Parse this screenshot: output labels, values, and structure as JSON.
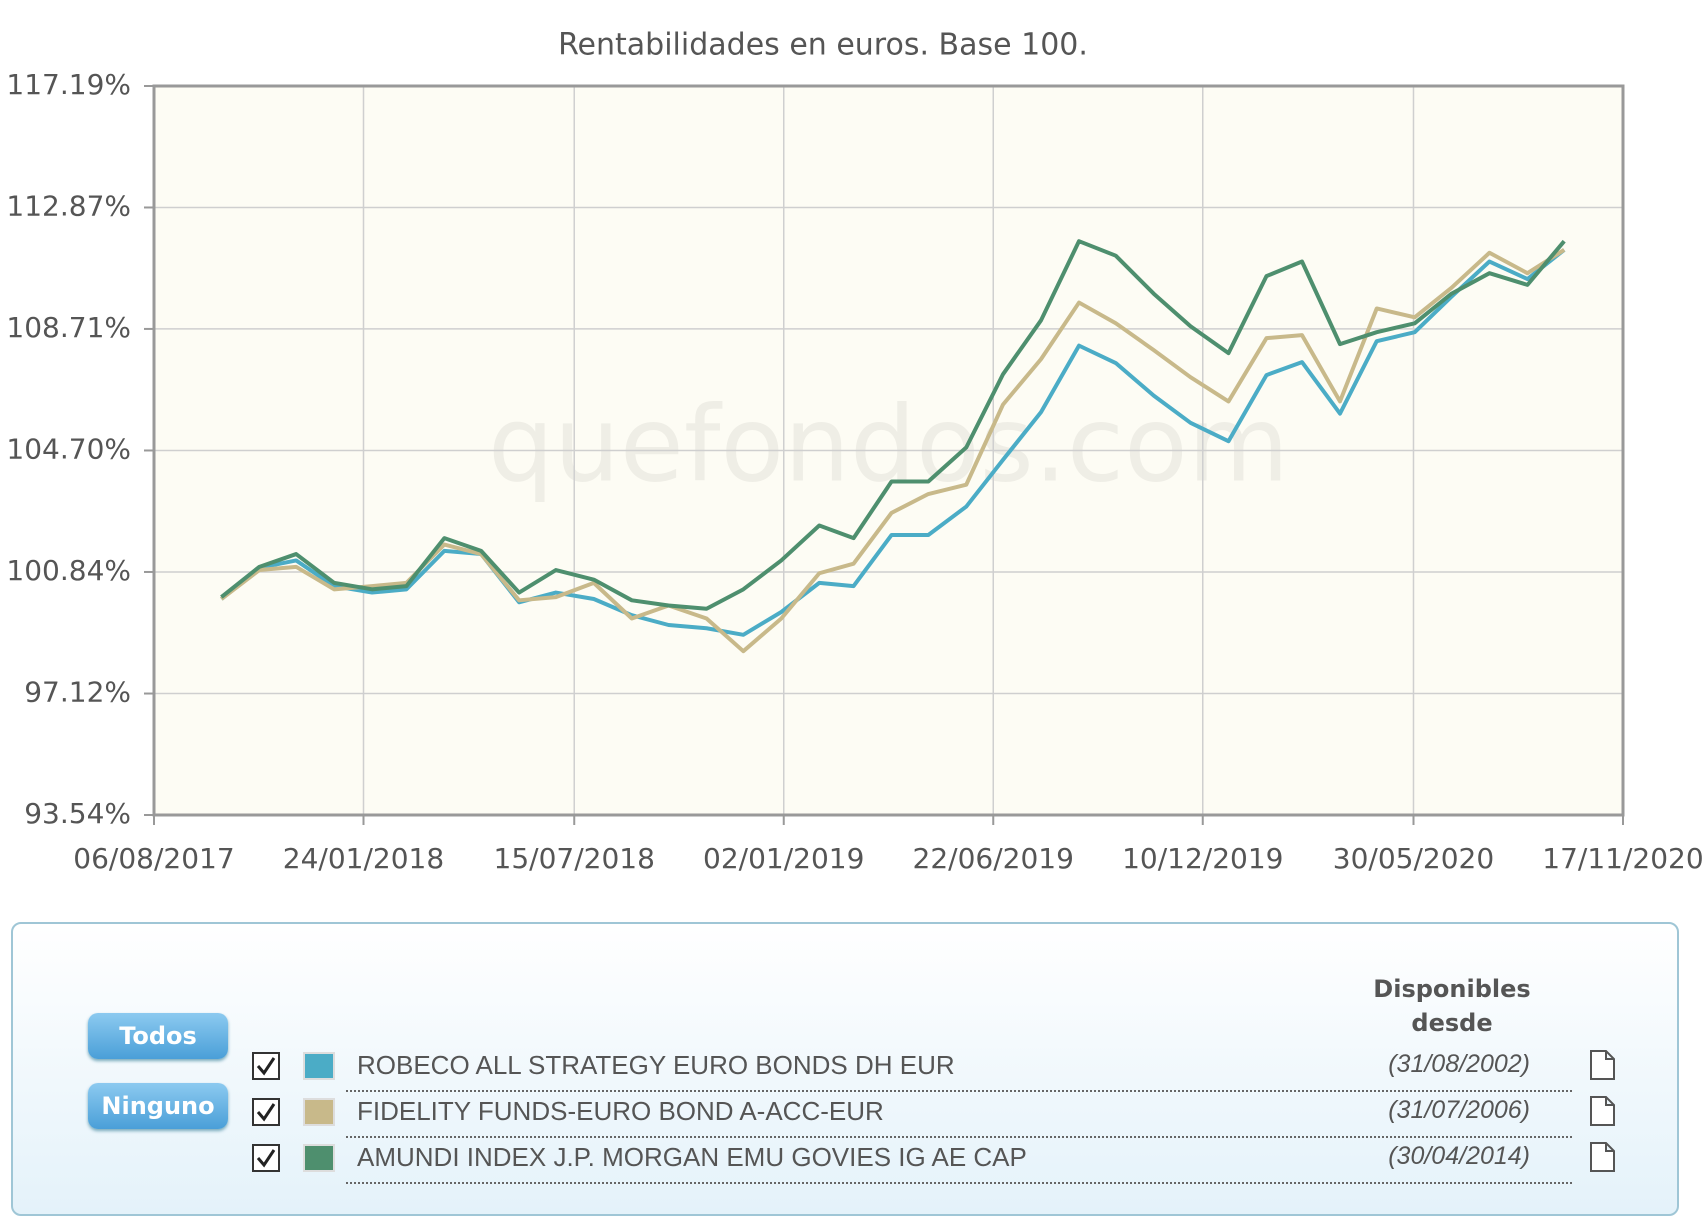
{
  "chart_data": {
    "type": "line",
    "title": "Rentabilidades en euros. Base 100.",
    "watermark": "quefondos.com",
    "log_scale": true,
    "grid": true,
    "x": [
      "2017-09-30",
      "2017-10-31",
      "2017-11-30",
      "2017-12-31",
      "2018-01-31",
      "2018-02-28",
      "2018-03-31",
      "2018-04-30",
      "2018-05-31",
      "2018-06-30",
      "2018-07-31",
      "2018-08-31",
      "2018-09-30",
      "2018-10-31",
      "2018-11-30",
      "2018-12-31",
      "2019-01-31",
      "2019-02-28",
      "2019-03-31",
      "2019-04-30",
      "2019-05-31",
      "2019-06-30",
      "2019-07-31",
      "2019-08-31",
      "2019-09-30",
      "2019-10-31",
      "2019-11-30",
      "2019-12-31",
      "2020-01-31",
      "2020-02-29",
      "2020-03-31",
      "2020-04-30",
      "2020-05-31",
      "2020-06-30",
      "2020-07-31",
      "2020-08-31",
      "2020-09-30"
    ],
    "xlim": [
      "2017-08-06",
      "2020-11-17"
    ],
    "xticks": [
      {
        "value": "2017-08-06",
        "label": "06/08/2017"
      },
      {
        "value": "2018-01-24",
        "label": "24/01/2018"
      },
      {
        "value": "2018-07-15",
        "label": "15/07/2018"
      },
      {
        "value": "2019-01-02",
        "label": "02/01/2019"
      },
      {
        "value": "2019-06-22",
        "label": "22/06/2019"
      },
      {
        "value": "2019-12-10",
        "label": "10/12/2019"
      },
      {
        "value": "2020-05-30",
        "label": "30/05/2020"
      },
      {
        "value": "2020-11-17",
        "label": "17/11/2020"
      }
    ],
    "ylim": [
      93.54,
      117.19
    ],
    "yticks": [
      {
        "value": 93.54,
        "label": "93.54%"
      },
      {
        "value": 97.12,
        "label": "97.12%"
      },
      {
        "value": 100.84,
        "label": "100.84%"
      },
      {
        "value": 104.7,
        "label": "104.70%"
      },
      {
        "value": 108.71,
        "label": "108.71%"
      },
      {
        "value": 112.87,
        "label": "112.87%"
      },
      {
        "value": 117.19,
        "label": "117.19%"
      }
    ],
    "series": [
      {
        "name": "ROBECO ALL STRATEGY EURO BONDS DH EUR",
        "color": "#4bacc6",
        "values": [
          100.0,
          100.97,
          101.2,
          100.4,
          100.2,
          100.3,
          101.5,
          101.4,
          99.9,
          100.2,
          100.0,
          99.5,
          99.2,
          99.1,
          98.9,
          99.6,
          100.5,
          100.4,
          102.0,
          102.0,
          102.9,
          104.4,
          105.95,
          108.15,
          107.57,
          106.49,
          105.6,
          105.0,
          107.17,
          107.6,
          105.9,
          108.3,
          108.6,
          109.8,
          111.0,
          110.4,
          111.4
        ]
      },
      {
        "name": "FIDELITY FUNDS-EURO BOND A-ACC-EUR",
        "color": "#c8b98a",
        "values": [
          100.0,
          100.9,
          101.0,
          100.3,
          100.4,
          100.5,
          101.7,
          101.4,
          99.96,
          100.06,
          100.5,
          99.4,
          99.8,
          99.4,
          98.4,
          99.4,
          100.8,
          101.1,
          102.7,
          103.3,
          103.6,
          106.2,
          107.7,
          109.6,
          108.9,
          108.0,
          107.1,
          106.3,
          108.4,
          108.5,
          106.3,
          109.4,
          109.1,
          110.1,
          111.3,
          110.6,
          111.4
        ]
      },
      {
        "name": "AMUNDI INDEX J.P. MORGAN EMU GOVIES IG AE CAP",
        "color": "#4e8f6e",
        "values": [
          100.06,
          101.0,
          101.4,
          100.5,
          100.3,
          100.4,
          101.9,
          101.5,
          100.2,
          100.9,
          100.6,
          99.96,
          99.8,
          99.7,
          100.3,
          101.2,
          102.3,
          101.9,
          103.7,
          103.7,
          104.8,
          107.2,
          109.0,
          111.7,
          111.2,
          109.9,
          108.8,
          107.9,
          110.5,
          111.0,
          108.2,
          108.6,
          108.9,
          109.9,
          110.6,
          110.2,
          111.7
        ]
      }
    ]
  },
  "fund_panel": {
    "buttons": [
      "Todos",
      "Ninguno"
    ],
    "since_header": "Disponibles desde",
    "since": [
      "(31/08/2002)",
      "(31/07/2006)",
      "(30/04/2014)"
    ]
  }
}
